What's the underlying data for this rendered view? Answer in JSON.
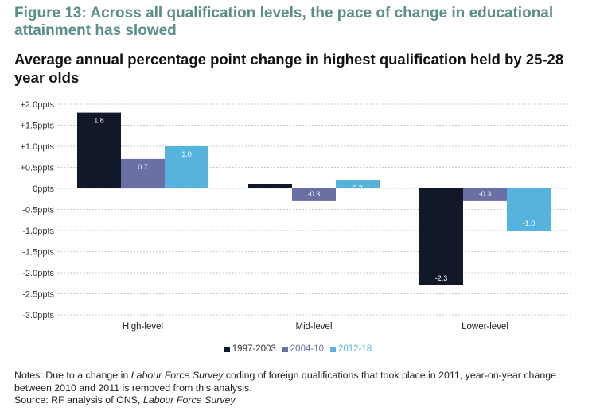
{
  "header": {
    "title": "Figure 13: Across all qualification levels, the pace of change in educational attainment has slowed",
    "subtitle": "Average annual percentage point change in highest qualification held by 25-28 year olds"
  },
  "chart_data": {
    "type": "bar",
    "categories": [
      "High-level",
      "Mid-level",
      "Lower-level"
    ],
    "series": [
      {
        "name": "1997-2003",
        "color": "#111827",
        "values": [
          1.8,
          0.1,
          -2.3
        ],
        "labels": [
          "1.8",
          "",
          "-2.3"
        ]
      },
      {
        "name": "2004-10",
        "color": "#6a6fa6",
        "values": [
          0.7,
          -0.3,
          -0.3
        ],
        "labels": [
          "0.7",
          "-0.3",
          "-0.3"
        ]
      },
      {
        "name": "2012-18",
        "color": "#55b3dd",
        "values": [
          1.0,
          0.2,
          -1.0
        ],
        "labels": [
          "1.0",
          "0.2",
          "-1.0"
        ]
      }
    ],
    "ylim": [
      -3.0,
      2.0
    ],
    "yticks": [
      2.0,
      1.5,
      1.0,
      0.5,
      0.0,
      -0.5,
      -1.0,
      -1.5,
      -2.0,
      -2.5,
      -3.0
    ],
    "ytick_labels": [
      "+2.0ppts",
      "+1.5ppts",
      "+1.0ppts",
      "+0.5ppts",
      "0ppts",
      "-0.5ppts",
      "-1.0ppts",
      "-1.5ppts",
      "-2.0ppts",
      "-2.5ppts",
      "-3.0ppts"
    ],
    "grid": true,
    "legend": "bottom"
  },
  "notes": {
    "line1_prefix": "Notes:  Due to a change in ",
    "line1_italic": "Labour Force Survey",
    "line1_suffix": " coding of foreign qualifications that took place in 2011, year-on-year change between 2010 and 2011 is removed from this analysis.",
    "source_prefix": "Source: RF analysis of ONS, ",
    "source_italic": "Labour Force Survey"
  }
}
